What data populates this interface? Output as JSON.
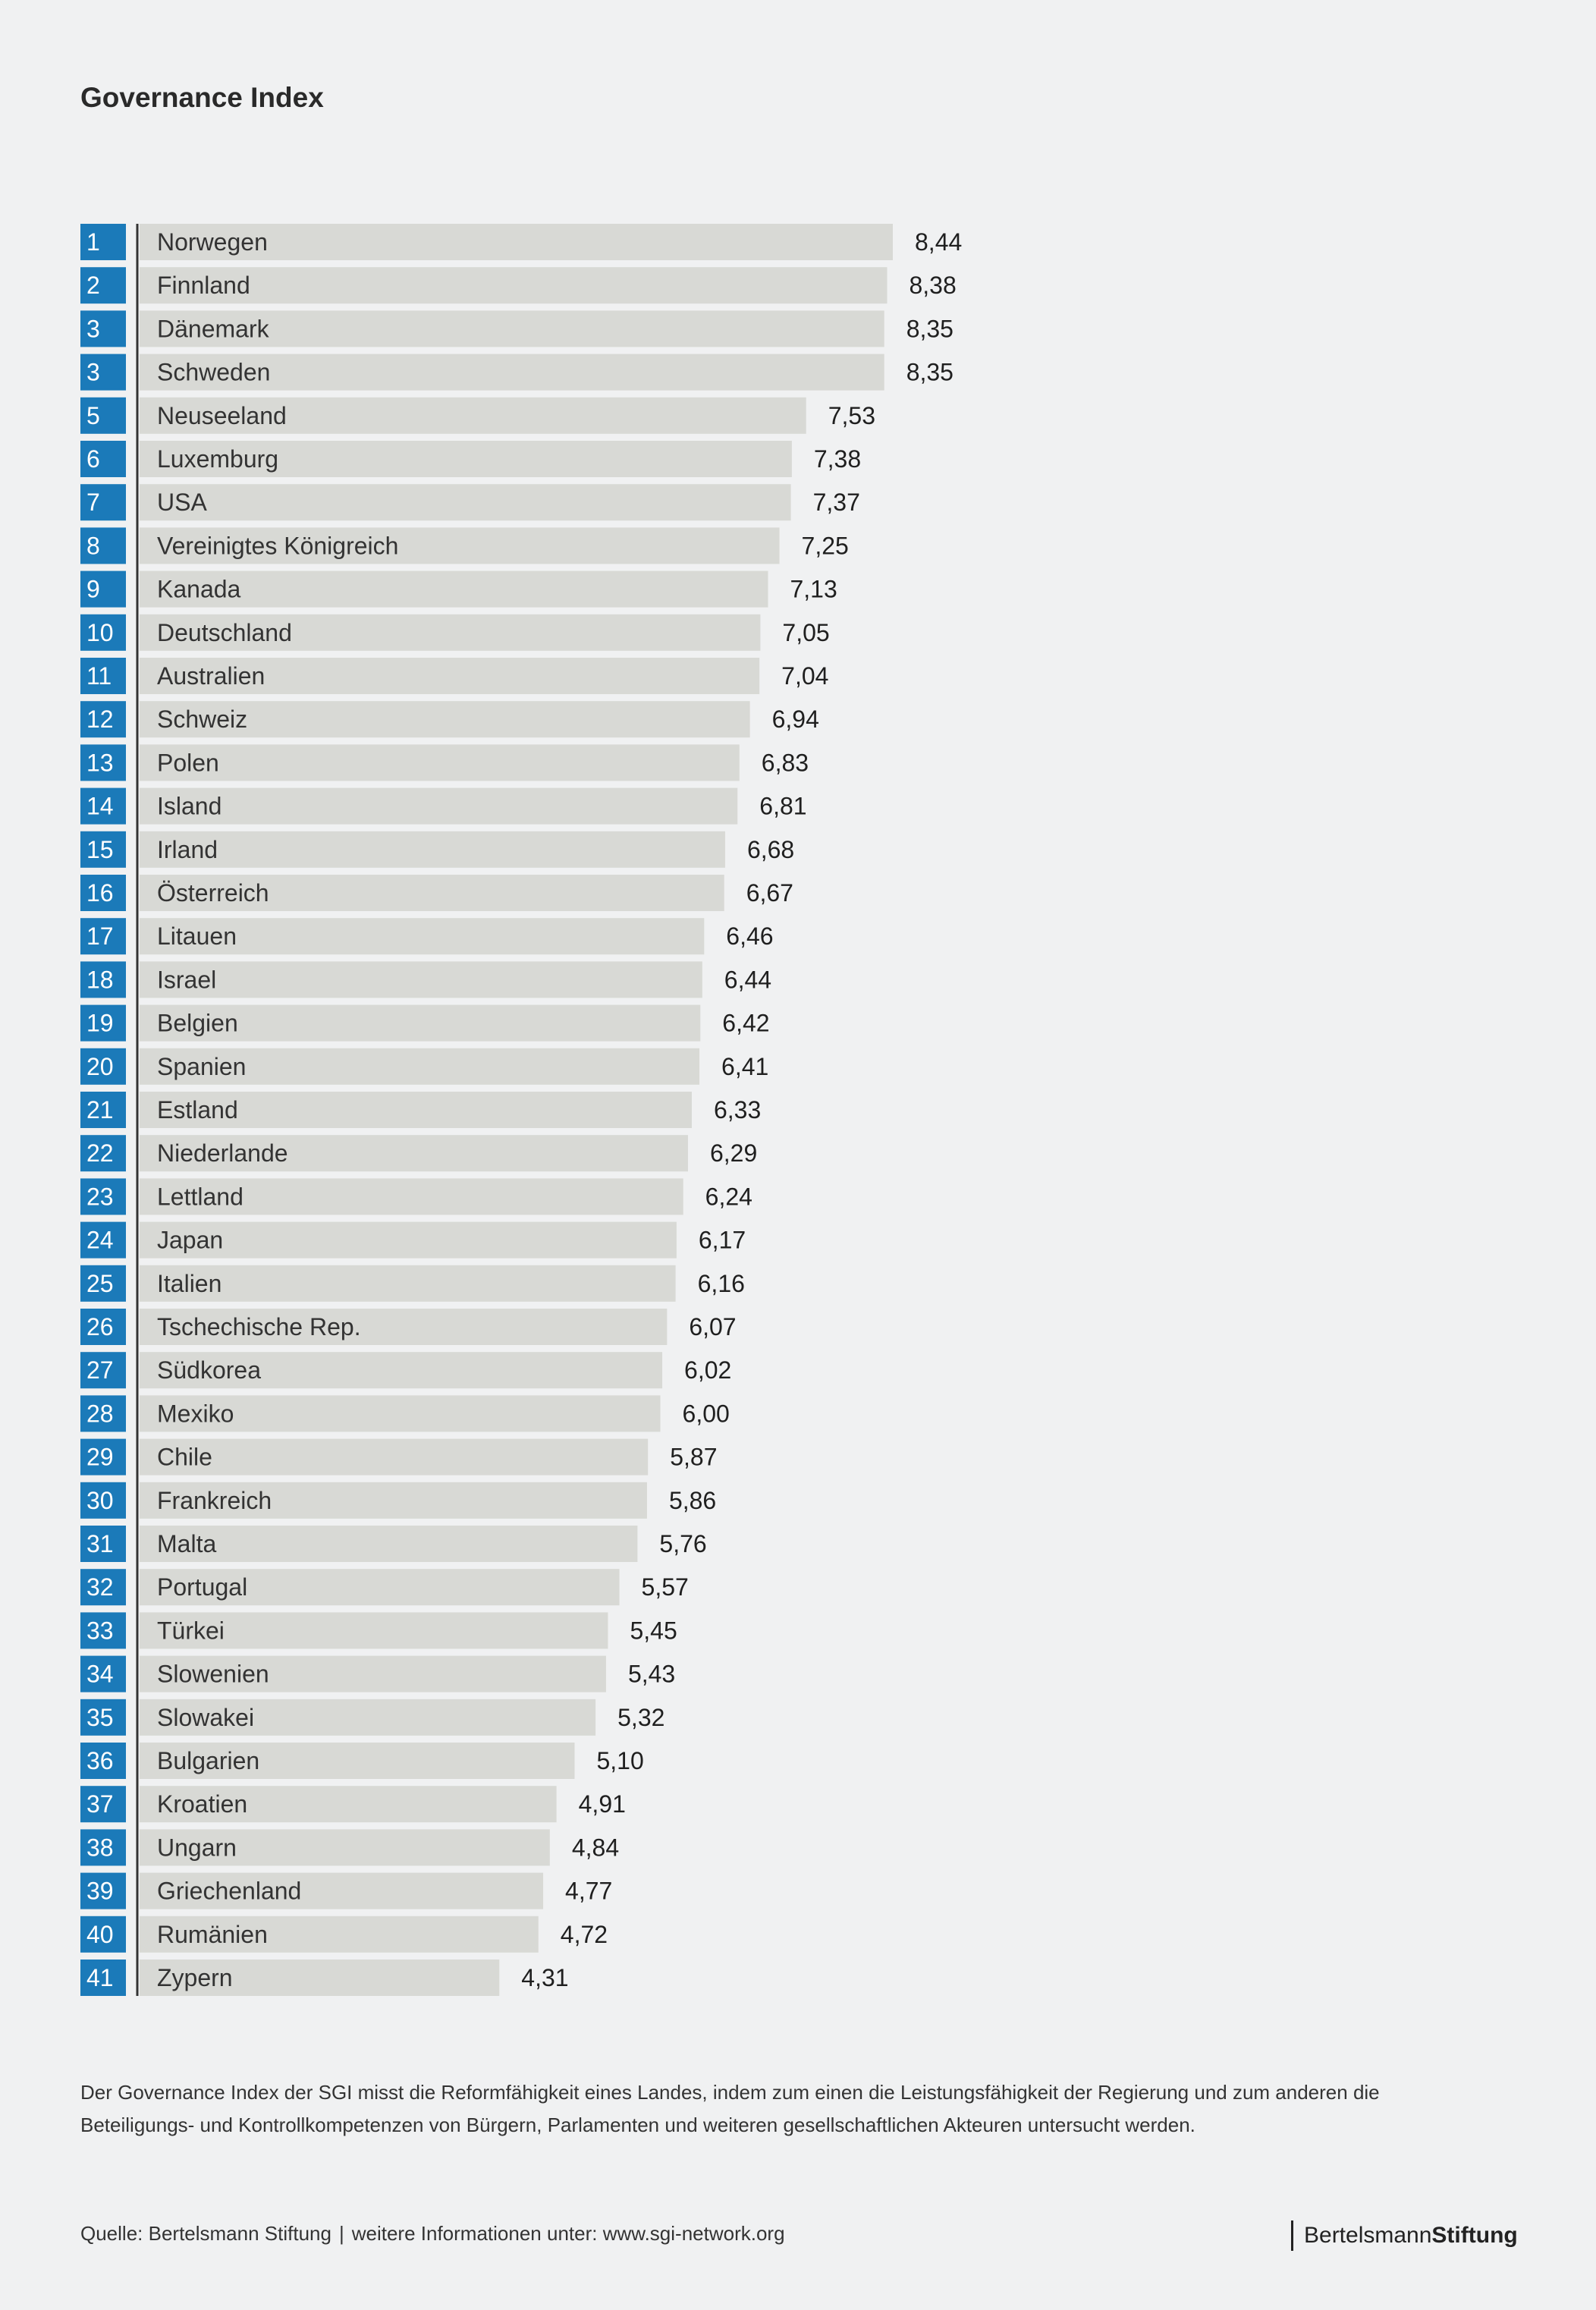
{
  "title": "Governance Index",
  "chart_data": {
    "type": "bar",
    "orientation": "horizontal",
    "title": "Governance Index",
    "ranks": [
      "1",
      "2",
      "3",
      "3",
      "5",
      "6",
      "7",
      "8",
      "9",
      "10",
      "11",
      "12",
      "13",
      "14",
      "15",
      "16",
      "17",
      "18",
      "19",
      "20",
      "21",
      "22",
      "23",
      "24",
      "25",
      "26",
      "27",
      "28",
      "29",
      "30",
      "31",
      "32",
      "33",
      "34",
      "35",
      "36",
      "37",
      "38",
      "39",
      "40",
      "41"
    ],
    "categories": [
      "Norwegen",
      "Finnland",
      "Dänemark",
      "Schweden",
      "Neuseeland",
      "Luxemburg",
      "USA",
      "Vereinigtes Königreich",
      "Kanada",
      "Deutschland",
      "Australien",
      "Schweiz",
      "Polen",
      "Island",
      "Irland",
      "Österreich",
      "Litauen",
      "Israel",
      "Belgien",
      "Spanien",
      "Estland",
      "Niederlande",
      "Lettland",
      "Japan",
      "Italien",
      "Tschechische Rep.",
      "Südkorea",
      "Mexiko",
      "Chile",
      "Frankreich",
      "Malta",
      "Portugal",
      "Türkei",
      "Slowenien",
      "Slowakei",
      "Bulgarien",
      "Kroatien",
      "Ungarn",
      "Griechenland",
      "Rumänien",
      "Zypern"
    ],
    "values": [
      8.44,
      8.38,
      8.35,
      8.35,
      7.53,
      7.38,
      7.37,
      7.25,
      7.13,
      7.05,
      7.04,
      6.94,
      6.83,
      6.81,
      6.68,
      6.67,
      6.46,
      6.44,
      6.42,
      6.41,
      6.33,
      6.29,
      6.24,
      6.17,
      6.16,
      6.07,
      6.02,
      6.0,
      5.87,
      5.86,
      5.76,
      5.57,
      5.45,
      5.43,
      5.32,
      5.1,
      4.91,
      4.84,
      4.77,
      4.72,
      4.31
    ],
    "value_labels": [
      "8,44",
      "8,38",
      "8,35",
      "8,35",
      "7,53",
      "7,38",
      "7,37",
      "7,25",
      "7,13",
      "7,05",
      "7,04",
      "6,94",
      "6,83",
      "6,81",
      "6,68",
      "6,67",
      "6,46",
      "6,44",
      "6,42",
      "6,41",
      "6,33",
      "6,29",
      "6,24",
      "6,17",
      "6,16",
      "6,07",
      "6,02",
      "6,00",
      "5,87",
      "5,86",
      "5,76",
      "5,57",
      "5,45",
      "5,43",
      "5,32",
      "5,10",
      "4,91",
      "4,84",
      "4,77",
      "4,72",
      "4,31"
    ],
    "grid": false,
    "colors": {
      "rank_box": "#1b7ab9",
      "bar": "#d8d9d5",
      "axis": "#333333"
    }
  },
  "description": "Der Governance Index der SGI misst die Reformfähigkeit eines Landes, indem zum einen die Leistungsfähigkeit der Regierung und zum anderen die Beteiligungs- und Kontrollkompetenzen von Bürgern, Parlamenten und weiteren gesellschaftlichen Akteuren untersucht werden.",
  "footer": {
    "source": "Quelle: Bertelsmann Stiftung",
    "separator": "|",
    "more_info": "weitere Informationen unter: www.sgi-network.org",
    "brand_part1": "Bertelsmann",
    "brand_part2": "Stiftung"
  }
}
